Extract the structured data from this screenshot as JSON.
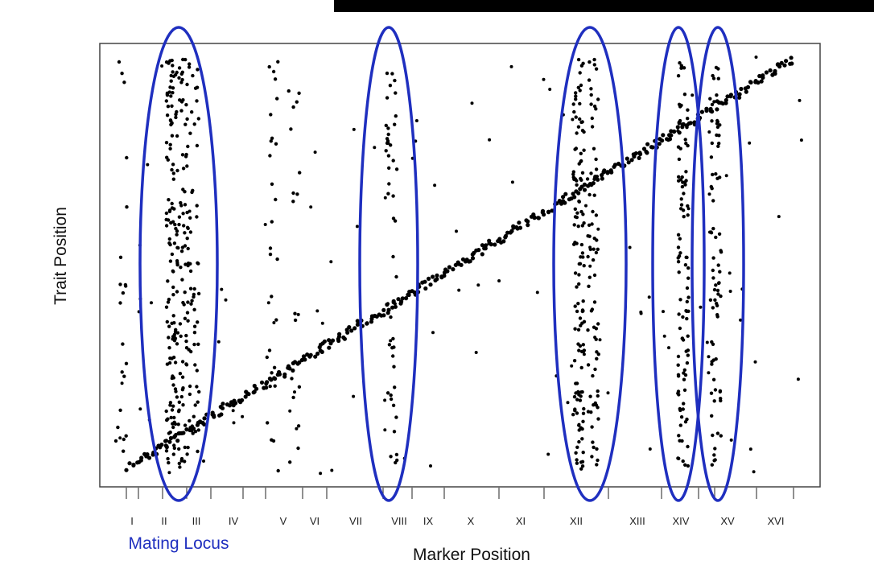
{
  "slide": {
    "title_partial": ""
  },
  "chart_data": {
    "type": "scatter",
    "title": "",
    "xlabel": "Marker Position",
    "ylabel": "Trait Position",
    "grid": false,
    "legend": "none",
    "chromosomes": [
      "I",
      "II",
      "III",
      "IV",
      "V",
      "VI",
      "VII",
      "VIII",
      "IX",
      "X",
      "XI",
      "XII",
      "XIII",
      "XIV",
      "XV",
      "XVI"
    ],
    "point_color": "#000000",
    "highlights": [
      {
        "chromosome": "III",
        "label": "Mating Locus"
      },
      {
        "chromosome": "VIII",
        "label": ""
      },
      {
        "chromosome": "XII",
        "label": ""
      },
      {
        "chromosome": "XIV",
        "label": ""
      },
      {
        "chromosome": "XV",
        "label": ""
      }
    ],
    "highlight_color": "#1f2fbf",
    "hotspot_bands": [
      {
        "chromosome": "I",
        "x": 0.03,
        "density": 0.15
      },
      {
        "chromosome": "III",
        "x": 0.1,
        "density": 0.9
      },
      {
        "chromosome": "III",
        "x": 0.115,
        "density": 0.6
      },
      {
        "chromosome": "III",
        "x": 0.13,
        "density": 0.4
      },
      {
        "chromosome": "V",
        "x": 0.24,
        "density": 0.2
      },
      {
        "chromosome": "V",
        "x": 0.27,
        "density": 0.12
      },
      {
        "chromosome": "VIII",
        "x": 0.405,
        "density": 0.35
      },
      {
        "chromosome": "XII",
        "x": 0.665,
        "density": 0.85
      },
      {
        "chromosome": "XII",
        "x": 0.685,
        "density": 0.5
      },
      {
        "chromosome": "XIV",
        "x": 0.81,
        "density": 0.75
      },
      {
        "chromosome": "XV",
        "x": 0.855,
        "density": 0.55
      }
    ]
  },
  "labels": {
    "mating_locus": "Mating Locus",
    "x_axis": "Marker Position",
    "y_axis": "Trait Position"
  }
}
